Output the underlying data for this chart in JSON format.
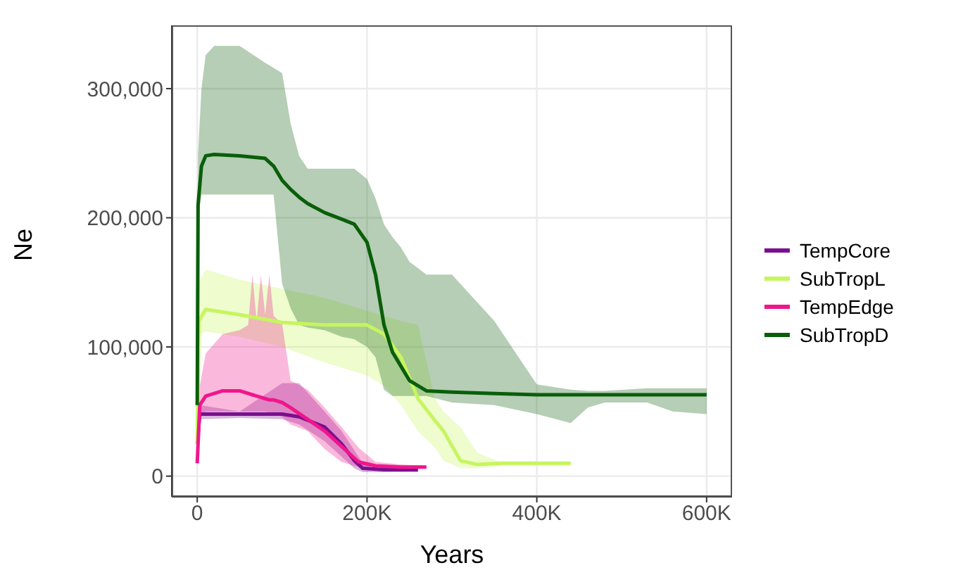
{
  "chart_data": {
    "type": "line",
    "xlabel": "Years",
    "ylabel": "Ne",
    "xlim": [
      -30000,
      630000
    ],
    "ylim": [
      -16000,
      349000
    ],
    "xticks": [
      {
        "value": 0,
        "label": "0"
      },
      {
        "value": 200000,
        "label": "200K"
      },
      {
        "value": 400000,
        "label": "400K"
      },
      {
        "value": 600000,
        "label": "600K"
      }
    ],
    "yticks": [
      {
        "value": 0,
        "label": "0"
      },
      {
        "value": 100000,
        "label": "100,000"
      },
      {
        "value": 200000,
        "label": "200,000"
      },
      {
        "value": 300000,
        "label": "300,000"
      }
    ],
    "grid": true,
    "legend": "right",
    "marker": "none",
    "line_style": "solid",
    "series": [
      {
        "name": "TempCore",
        "color": "#7b0f8f",
        "x": [
          0,
          3000,
          50000,
          100000,
          120000,
          150000,
          170000,
          185000,
          195000,
          220000,
          260000
        ],
        "values": [
          25000,
          48000,
          48000,
          48000,
          46000,
          38000,
          25000,
          12000,
          6000,
          5000,
          5000
        ],
        "upper": [
          25000,
          55000,
          50000,
          72000,
          72000,
          50000,
          35000,
          20000,
          10000,
          7000,
          6000
        ],
        "lower": [
          25000,
          44000,
          45000,
          44000,
          40000,
          27000,
          15000,
          6000,
          3000,
          3000,
          3000
        ]
      },
      {
        "name": "SubTropL",
        "color": "#c6f55e",
        "x": [
          0,
          2000,
          10000,
          50000,
          100000,
          150000,
          200000,
          220000,
          240000,
          260000,
          280000,
          290000,
          310000,
          330000,
          360000,
          440000
        ],
        "values": [
          25000,
          120000,
          129000,
          125000,
          119000,
          117000,
          117000,
          110000,
          92000,
          60000,
          43000,
          35000,
          12000,
          9000,
          10000,
          10000
        ],
        "upper": [
          25000,
          150000,
          160000,
          152000,
          145000,
          138000,
          128000,
          124000,
          120000,
          117000,
          60000,
          50000,
          38000,
          18000,
          10000,
          10000
        ],
        "lower": [
          25000,
          110000,
          112000,
          108000,
          100000,
          88000,
          78000,
          70000,
          55000,
          35000,
          22000,
          12000,
          6000,
          6000,
          8000,
          8000
        ]
      },
      {
        "name": "TempEdge",
        "color": "#f0168c",
        "x": [
          0,
          3000,
          10000,
          30000,
          50000,
          60000,
          65000,
          70000,
          75000,
          80000,
          85000,
          90000,
          100000,
          110000,
          130000,
          150000,
          170000,
          190000,
          210000,
          240000,
          270000
        ],
        "values": [
          10000,
          55000,
          62000,
          66000,
          66000,
          64000,
          63000,
          62000,
          61000,
          60000,
          59000,
          59000,
          57000,
          53000,
          44000,
          35000,
          23000,
          11000,
          8000,
          7000,
          7000
        ],
        "upper": [
          10000,
          70000,
          95000,
          110000,
          113000,
          117000,
          156000,
          120000,
          156000,
          125000,
          156000,
          124000,
          118000,
          74000,
          67000,
          53000,
          38000,
          22000,
          11000,
          9000,
          8000
        ],
        "lower": [
          10000,
          45000,
          50000,
          50000,
          50000,
          50000,
          50000,
          50000,
          50000,
          50000,
          49000,
          48000,
          46000,
          40000,
          35000,
          21000,
          11000,
          7000,
          6000,
          6000,
          6000
        ]
      },
      {
        "name": "SubTropD",
        "color": "#0a5e0a",
        "x": [
          0,
          1000,
          5000,
          10000,
          20000,
          50000,
          80000,
          90000,
          100000,
          110000,
          120000,
          130000,
          150000,
          170000,
          185000,
          200000,
          210000,
          220000,
          230000,
          240000,
          250000,
          270000,
          300000,
          350000,
          400000,
          440000,
          460000,
          480000,
          530000,
          560000,
          600000
        ],
        "values": [
          55000,
          210000,
          240000,
          248000,
          249000,
          248000,
          246000,
          240000,
          229000,
          222000,
          216000,
          211000,
          204000,
          199000,
          195000,
          181000,
          156000,
          117000,
          96000,
          85000,
          74000,
          66000,
          65000,
          64000,
          63000,
          63000,
          63000,
          63000,
          63000,
          63000,
          63000
        ],
        "upper": [
          55000,
          250000,
          300000,
          326000,
          333000,
          333000,
          320000,
          316000,
          312000,
          273000,
          248000,
          238000,
          238000,
          238000,
          238000,
          230000,
          215000,
          195000,
          185000,
          177000,
          166000,
          156000,
          156000,
          120000,
          71000,
          67000,
          66000,
          66000,
          68000,
          68000,
          68000
        ],
        "lower": [
          55000,
          200000,
          218000,
          218000,
          218000,
          218000,
          218000,
          218000,
          149000,
          130000,
          117000,
          115000,
          113000,
          108000,
          106000,
          100000,
          92000,
          67000,
          62000,
          62000,
          62000,
          62000,
          57000,
          55000,
          48000,
          41000,
          53000,
          57000,
          57000,
          50000,
          48000
        ]
      }
    ]
  }
}
